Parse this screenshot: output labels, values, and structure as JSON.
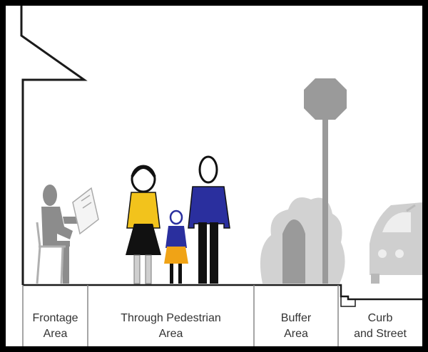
{
  "zones": [
    {
      "label": "Frontage\nArea"
    },
    {
      "label": "Through Pedestrian\nArea"
    },
    {
      "label": "Buffer\nArea"
    },
    {
      "label": "Curb\nand Street"
    }
  ],
  "colors": {
    "frame": "#000000",
    "background": "#ffffff",
    "line": "#1a1a1a",
    "gray_figure": "#8c8c8c",
    "light_gray": "#b8b8b8",
    "sign": "#9a9a9a",
    "yellow": "#f2c31c",
    "blue": "#2a2f9e",
    "skirt_black": "#111111",
    "child_orange": "#f0a316",
    "label_text": "#333333"
  },
  "icons": [
    "house-outline-icon",
    "seated-reader-icon",
    "woman-icon",
    "child-icon",
    "man-icon",
    "shrub-icon",
    "stop-sign-icon",
    "car-icon"
  ]
}
